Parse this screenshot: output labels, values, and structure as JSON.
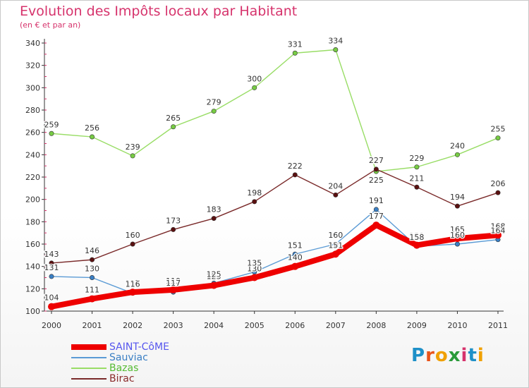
{
  "title": "Evolution des Impôts locaux par Habitant",
  "subtitle": "(en € et par an)",
  "logo": {
    "text": "Proxiti",
    "colors": [
      "#1e90c8",
      "#e8541a",
      "#f0a000",
      "#2a9a3a",
      "#d6336c",
      "#1e90c8",
      "#f0a000"
    ]
  },
  "colors": {
    "title": "#d6336c",
    "axis": "#333333",
    "saint_come": "#ee0000",
    "sauviac": "#5b9bd5",
    "bazas": "#99dd66",
    "birac": "#6b1d1d"
  },
  "chart_data": {
    "type": "line",
    "title": "Evolution des Impôts locaux par Habitant",
    "subtitle": "(en € et par an)",
    "xlabel": "",
    "ylabel": "",
    "categories": [
      "2000",
      "2001",
      "2002",
      "2003",
      "2004",
      "2005",
      "2006",
      "2007",
      "2008",
      "2009",
      "2010",
      "2011"
    ],
    "ylim": [
      100,
      340
    ],
    "yticks": [
      100,
      120,
      140,
      160,
      180,
      200,
      220,
      240,
      260,
      280,
      300,
      320,
      340
    ],
    "grid": false,
    "legend_position": "bottom-left",
    "series": [
      {
        "name": "SAINT-CôME",
        "color": "#ee0000",
        "marker": "#ee0000",
        "legend_color": "#5555ee",
        "bold": true,
        "values": [
          104,
          111,
          117,
          119,
          123,
          130,
          140,
          151,
          177,
          159,
          165,
          168
        ]
      },
      {
        "name": "Sauviac",
        "color": "#5b9bd5",
        "marker": "#3a7fc4",
        "legend_color": "#3a7fc4",
        "bold": false,
        "values": [
          131,
          130,
          116,
          117,
          125,
          135,
          151,
          160,
          191,
          158,
          160,
          164
        ]
      },
      {
        "name": "Bazas",
        "color": "#99dd66",
        "marker": "#77cc44",
        "legend_color": "#55bb33",
        "bold": false,
        "values": [
          259,
          256,
          239,
          265,
          279,
          300,
          331,
          334,
          225,
          229,
          240,
          255
        ]
      },
      {
        "name": "Birac",
        "color": "#7a2a2a",
        "marker": "#5a1010",
        "legend_color": "#8a2a2a",
        "bold": false,
        "values": [
          143,
          146,
          160,
          173,
          183,
          198,
          222,
          204,
          227,
          211,
          194,
          206
        ]
      }
    ]
  }
}
